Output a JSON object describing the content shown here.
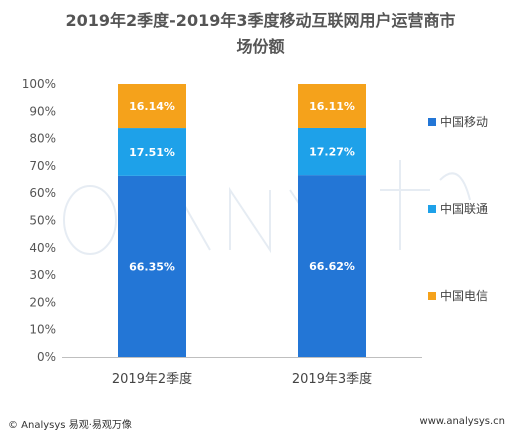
{
  "chart_data": {
    "type": "bar",
    "stacked": true,
    "title_lines": [
      "2019年2季度-2019年3季度移动互联网用户运营商市",
      "场份额"
    ],
    "categories": [
      "2019年2季度",
      "2019年3季度"
    ],
    "series": [
      {
        "name": "中国移动",
        "values": [
          66.35,
          66.62
        ],
        "labels": [
          "66.35%",
          "66.62%"
        ],
        "color": "#2376d6"
      },
      {
        "name": "中国联通",
        "values": [
          17.51,
          17.27
        ],
        "labels": [
          "17.51%",
          "17.27%"
        ],
        "color": "#1ea1e9"
      },
      {
        "name": "中国电信",
        "values": [
          16.14,
          16.11
        ],
        "labels": [
          "16.14%",
          "16.11%"
        ],
        "color": "#f5a21b"
      }
    ],
    "y_ticks": [
      "0%",
      "10%",
      "20%",
      "30%",
      "40%",
      "50%",
      "60%",
      "70%",
      "80%",
      "90%",
      "100%"
    ],
    "ylim": [
      0,
      100
    ],
    "grid": false,
    "legend_position": "right",
    "legend_order": [
      0,
      1,
      2
    ]
  },
  "footer": {
    "left": "© Analysys 易观·易观万像",
    "right": "www.analysys.cn"
  }
}
